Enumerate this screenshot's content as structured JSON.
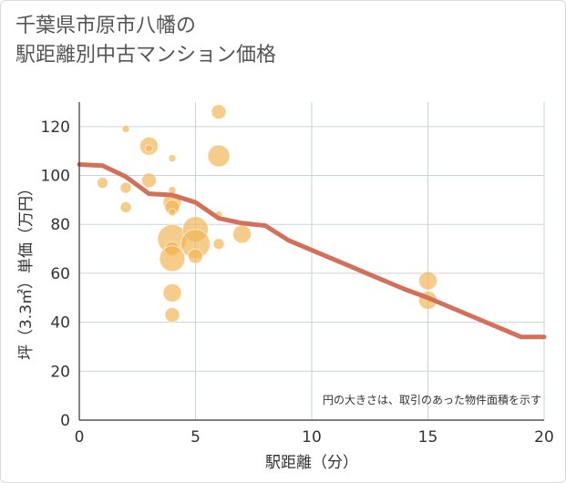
{
  "title": {
    "line1": "千葉県市原市八幡の",
    "line2": "駅距離別中古マンション価格"
  },
  "chart_data": {
    "type": "scatter",
    "xlabel": "駅距離（分）",
    "ylabel": "坪（3.3㎡）単価（万円）",
    "xlim": [
      0,
      20
    ],
    "ylim": [
      0,
      130
    ],
    "x_ticks": [
      0,
      5,
      10,
      15,
      20
    ],
    "y_ticks": [
      0,
      20,
      40,
      60,
      80,
      100,
      120
    ],
    "grid": true,
    "note": "円の大きさは、取引のあった物件面積を示す",
    "colors": {
      "bubble": "#f2b65a",
      "trend": "#d4705a",
      "grid": "#c9d3dd",
      "axis": "#333333"
    },
    "bubbles": [
      {
        "x": 1,
        "y": 97,
        "size": 6
      },
      {
        "x": 2,
        "y": 119,
        "size": 4
      },
      {
        "x": 2,
        "y": 95,
        "size": 6
      },
      {
        "x": 2,
        "y": 87,
        "size": 6
      },
      {
        "x": 3,
        "y": 112,
        "size": 10
      },
      {
        "x": 3,
        "y": 111,
        "size": 4
      },
      {
        "x": 3,
        "y": 98,
        "size": 8
      },
      {
        "x": 4,
        "y": 107,
        "size": 4
      },
      {
        "x": 4,
        "y": 94,
        "size": 4
      },
      {
        "x": 4,
        "y": 89,
        "size": 10
      },
      {
        "x": 4,
        "y": 87,
        "size": 8
      },
      {
        "x": 4,
        "y": 85,
        "size": 4
      },
      {
        "x": 4,
        "y": 74,
        "size": 16
      },
      {
        "x": 4,
        "y": 70,
        "size": 8
      },
      {
        "x": 4,
        "y": 66,
        "size": 14
      },
      {
        "x": 4,
        "y": 52,
        "size": 10
      },
      {
        "x": 4,
        "y": 43,
        "size": 8
      },
      {
        "x": 5,
        "y": 78,
        "size": 14
      },
      {
        "x": 5,
        "y": 72,
        "size": 16
      },
      {
        "x": 5,
        "y": 67,
        "size": 8
      },
      {
        "x": 6,
        "y": 126,
        "size": 8
      },
      {
        "x": 6,
        "y": 108,
        "size": 12
      },
      {
        "x": 6,
        "y": 84,
        "size": 4
      },
      {
        "x": 6,
        "y": 72,
        "size": 6
      },
      {
        "x": 7,
        "y": 76,
        "size": 10
      },
      {
        "x": 15,
        "y": 57,
        "size": 10
      },
      {
        "x": 15,
        "y": 49,
        "size": 10
      }
    ],
    "trend": {
      "x": [
        0,
        1,
        2,
        3,
        4,
        5,
        6,
        7,
        8,
        9,
        10,
        11,
        12,
        13,
        14,
        15,
        16,
        17,
        18,
        19,
        20
      ],
      "y": [
        104.5,
        104,
        99.5,
        92.5,
        92,
        89,
        82.5,
        80.5,
        79.5,
        73.5,
        69.5,
        65.5,
        61.5,
        57.5,
        53.5,
        50,
        46,
        42,
        38,
        34,
        34
      ]
    }
  }
}
